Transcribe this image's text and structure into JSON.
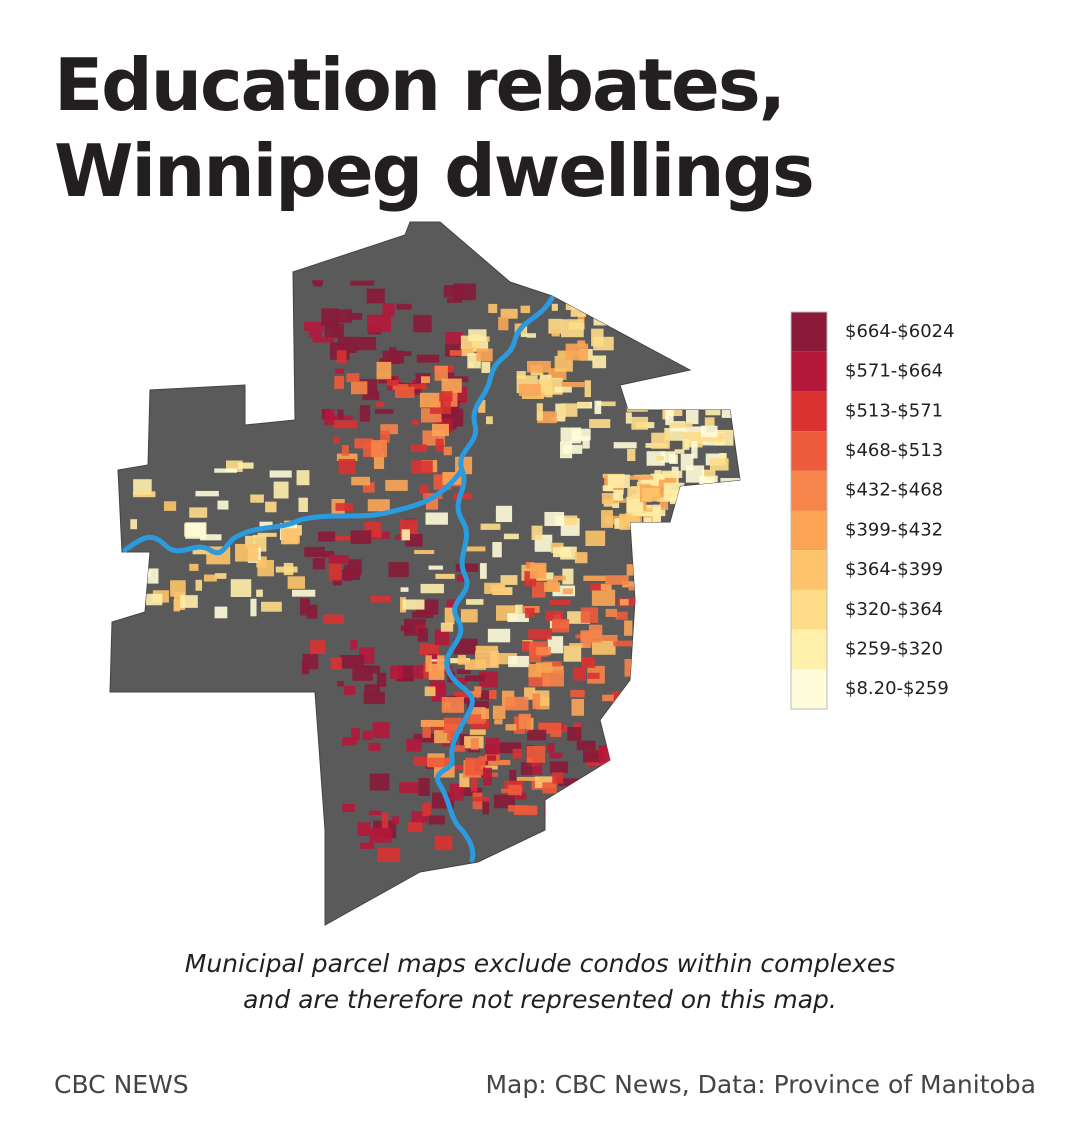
{
  "title": {
    "lines": [
      "Education rebates,",
      "Winnipeg dwellings"
    ]
  },
  "legend": {
    "items": [
      {
        "label": "$664-$6024",
        "color": "#8a1a38"
      },
      {
        "label": "$571-$664",
        "color": "#b5173a"
      },
      {
        "label": "$513-$571",
        "color": "#da3131"
      },
      {
        "label": "$468-$513",
        "color": "#ee5b3a"
      },
      {
        "label": "$432-$468",
        "color": "#f7844a"
      },
      {
        "label": "$399-$432",
        "color": "#fba554"
      },
      {
        "label": "$364-$399",
        "color": "#fdc46b"
      },
      {
        "label": "$320-$364",
        "color": "#fedc87"
      },
      {
        "label": "$259-$320",
        "color": "#fff0ab"
      },
      {
        "label": "$8.20-$259",
        "color": "#fffcd9"
      }
    ]
  },
  "note": {
    "lines": [
      "Municipal parcel maps exclude condos within complexes",
      "and are therefore not represented on this map."
    ]
  },
  "footer": {
    "brand": "CBC NEWS",
    "credit": "Map: CBC News, Data: Province of Manitoba"
  }
}
